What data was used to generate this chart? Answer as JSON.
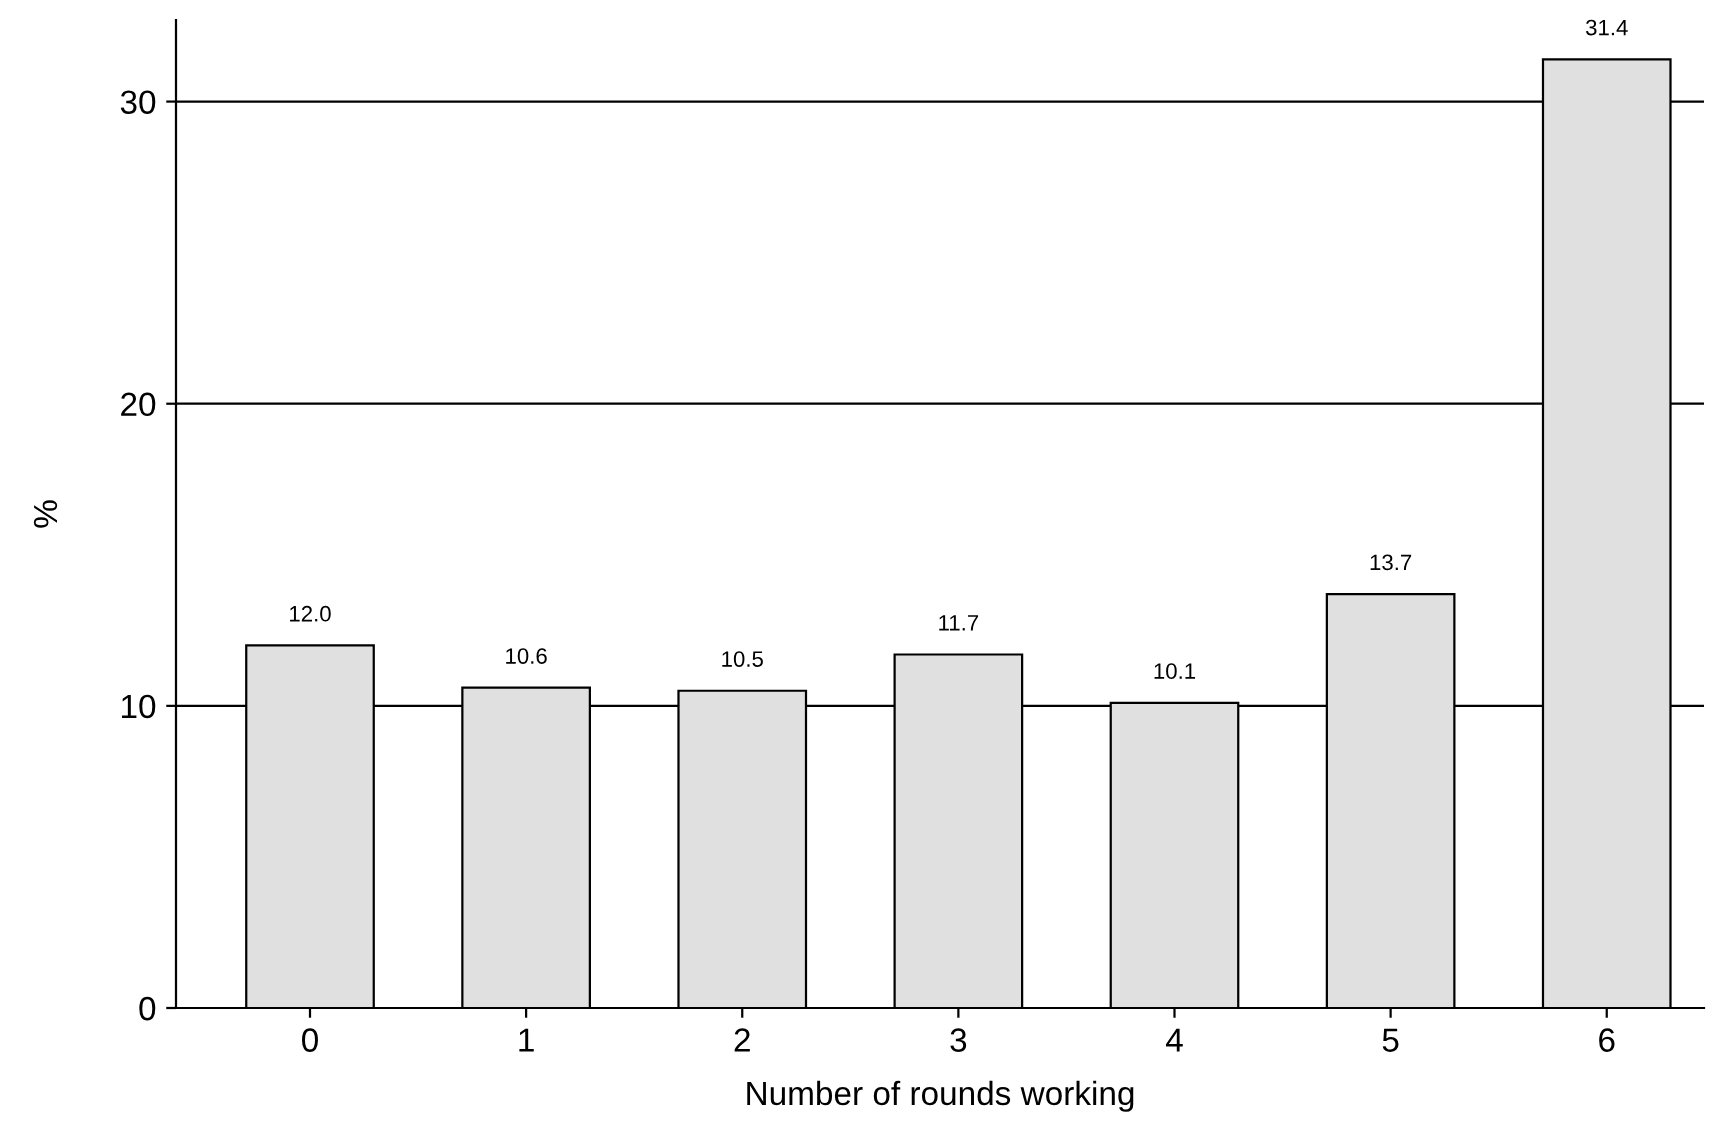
{
  "chart_data": {
    "type": "bar",
    "xlabel": "Number of rounds working",
    "ylabel": "%",
    "categories": [
      "0",
      "1",
      "2",
      "3",
      "4",
      "5",
      "6"
    ],
    "values": [
      12.0,
      10.6,
      10.5,
      11.7,
      10.1,
      13.7,
      31.4
    ],
    "value_labels": [
      "12.0",
      "10.6",
      "10.5",
      "11.7",
      "10.1",
      "13.7",
      "31.4"
    ],
    "color": "#e0e0e0",
    "ylim": [
      0,
      32.7
    ],
    "yticks": [
      0,
      10,
      20,
      30
    ],
    "grid": "y",
    "legend": false
  }
}
